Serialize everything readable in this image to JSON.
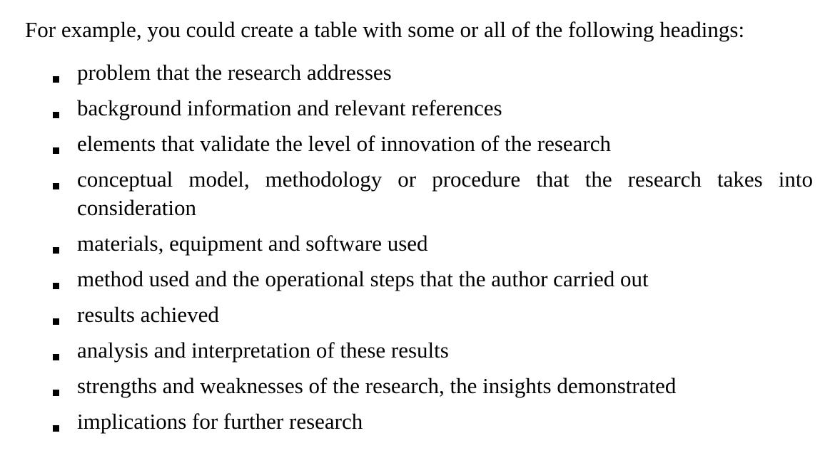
{
  "intro": "For example, you could create a table with some or all of the following headings:",
  "items": [
    {
      "text": "problem that the research addresses"
    },
    {
      "text": "background information and relevant references"
    },
    {
      "text": "elements that validate the level of innovation of the research"
    },
    {
      "text": "conceptual model, methodology or procedure that the research takes into consideration"
    },
    {
      "text": "materials, equipment and software used"
    },
    {
      "text": "method used and the operational steps that the author carried out"
    },
    {
      "text": "results achieved"
    },
    {
      "text": "analysis and interpretation of these results"
    },
    {
      "text": "strengths and weaknesses of the research, the insights demonstrated"
    },
    {
      "text": "implications for further research"
    }
  ]
}
